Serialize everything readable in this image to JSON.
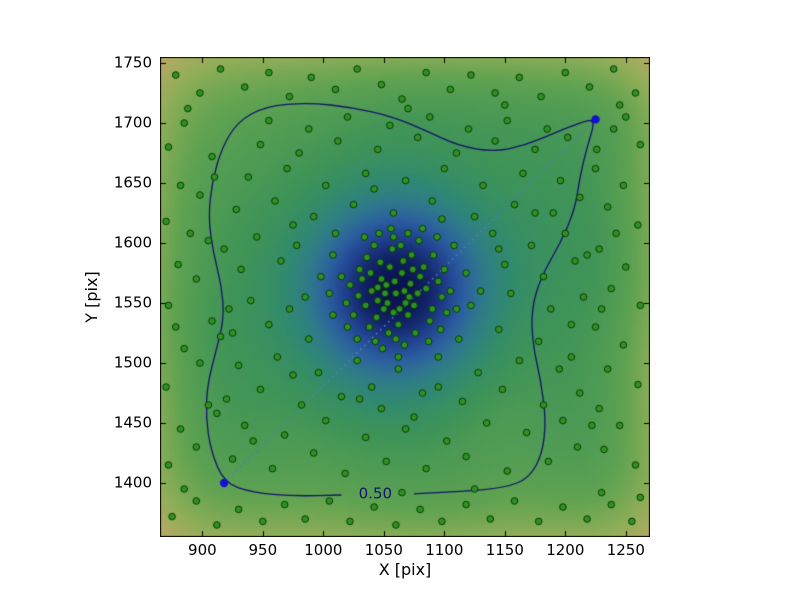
{
  "figure": {
    "background": "#ffffff"
  },
  "chart_data": {
    "type": "scatter",
    "title": "",
    "xlabel": "X [pix]",
    "ylabel": "Y [pix]",
    "xlim": [
      865,
      1270
    ],
    "ylim": [
      1355,
      1755
    ],
    "xticks": [
      900,
      950,
      1000,
      1050,
      1100,
      1150,
      1200,
      1250
    ],
    "yticks": [
      1400,
      1450,
      1500,
      1550,
      1600,
      1650,
      1700,
      1750
    ],
    "grid": false,
    "legend": null,
    "background_density": {
      "description": "kernel-density map of the scatter points, dark blue = highest density at cluster center (1060,1558), tan = lowest at edges",
      "bandwidth": 40,
      "gamma": 0.6,
      "colormap_stops": [
        [
          0.0,
          "#f0d9cc"
        ],
        [
          0.07,
          "#dcb195"
        ],
        [
          0.14,
          "#c9a178"
        ],
        [
          0.2,
          "#b3aa65"
        ],
        [
          0.27,
          "#8fae58"
        ],
        [
          0.35,
          "#60a351"
        ],
        [
          0.45,
          "#3f9457"
        ],
        [
          0.55,
          "#318a70"
        ],
        [
          0.65,
          "#2f7b8b"
        ],
        [
          0.75,
          "#2c5fa0"
        ],
        [
          0.85,
          "#20408e"
        ],
        [
          0.93,
          "#132468"
        ],
        [
          1.0,
          "#0a1252"
        ]
      ]
    },
    "scatter": {
      "color": "#2e9222",
      "edge_color": "#0c3a06",
      "radius": 3.3,
      "points": [
        [
          1060,
          1558
        ],
        [
          1052,
          1565
        ],
        [
          1068,
          1550
        ],
        [
          1045,
          1552
        ],
        [
          1072,
          1566
        ],
        [
          1058,
          1542
        ],
        [
          1065,
          1575
        ],
        [
          1048,
          1570
        ],
        [
          1078,
          1558
        ],
        [
          1040,
          1560
        ],
        [
          1055,
          1580
        ],
        [
          1070,
          1540
        ],
        [
          1062,
          1532
        ],
        [
          1050,
          1545
        ],
        [
          1080,
          1572
        ],
        [
          1035,
          1548
        ],
        [
          1066,
          1585
        ],
        [
          1044,
          1538
        ],
        [
          1075,
          1548
        ],
        [
          1057,
          1595
        ],
        [
          1085,
          1562
        ],
        [
          1032,
          1570
        ],
        [
          1060,
          1520
        ],
        [
          1047,
          1584
        ],
        [
          1090,
          1545
        ],
        [
          1038,
          1530
        ],
        [
          1073,
          1590
        ],
        [
          1054,
          1525
        ],
        [
          1083,
          1580
        ],
        [
          1029,
          1556
        ],
        [
          1095,
          1568
        ],
        [
          1042,
          1598
        ],
        [
          1067,
          1515
        ],
        [
          1036,
          1588
        ],
        [
          1088,
          1535
        ],
        [
          1058,
          1605
        ],
        [
          1025,
          1540
        ],
        [
          1079,
          1602
        ],
        [
          1049,
          1512
        ],
        [
          1098,
          1555
        ],
        [
          1030,
          1578
        ],
        [
          1064,
          1598
        ],
        [
          1091,
          1590
        ],
        [
          1022,
          1565
        ],
        [
          1076,
          1525
        ],
        [
          1043,
          1518
        ],
        [
          1100,
          1578
        ],
        [
          1056,
          1612
        ],
        [
          1034,
          1605
        ],
        [
          1087,
          1518
        ],
        [
          1102,
          1542
        ],
        [
          1019,
          1550
        ],
        [
          1070,
          1608
        ],
        [
          1046,
          1608
        ],
        [
          1094,
          1605
        ],
        [
          1028,
          1520
        ],
        [
          1105,
          1560
        ],
        [
          1062,
          1505
        ],
        [
          1039,
          1575
        ],
        [
          1082,
          1612
        ],
        [
          1015,
          1572
        ],
        [
          1097,
          1528
        ],
        [
          1051,
          1558
        ],
        [
          1074,
          1578
        ],
        [
          1059,
          1568
        ],
        [
          1067,
          1560
        ],
        [
          1053,
          1550
        ],
        [
          1063,
          1545
        ],
        [
          1071,
          1555
        ],
        [
          1045,
          1563
        ],
        [
          925,
          1420
        ],
        [
          958,
          1412
        ],
        [
          992,
          1425
        ],
        [
          1018,
          1408
        ],
        [
          1052,
          1418
        ],
        [
          1085,
          1412
        ],
        [
          1118,
          1422
        ],
        [
          1152,
          1410
        ],
        [
          1186,
          1418
        ],
        [
          1210,
          1430
        ],
        [
          935,
          1448
        ],
        [
          968,
          1440
        ],
        [
          1002,
          1452
        ],
        [
          1035,
          1438
        ],
        [
          1068,
          1445
        ],
        [
          1102,
          1435
        ],
        [
          1135,
          1450
        ],
        [
          1168,
          1442
        ],
        [
          1198,
          1452
        ],
        [
          920,
          1470
        ],
        [
          948,
          1478
        ],
        [
          982,
          1465
        ],
        [
          1015,
          1472
        ],
        [
          1048,
          1462
        ],
        [
          1082,
          1475
        ],
        [
          1115,
          1468
        ],
        [
          1148,
          1478
        ],
        [
          1182,
          1465
        ],
        [
          1212,
          1475
        ],
        [
          930,
          1498
        ],
        [
          962,
          1505
        ],
        [
          996,
          1492
        ],
        [
          1028,
          1502
        ],
        [
          1062,
          1495
        ],
        [
          1095,
          1505
        ],
        [
          1128,
          1492
        ],
        [
          1162,
          1502
        ],
        [
          1195,
          1495
        ],
        [
          925,
          1525
        ],
        [
          955,
          1532
        ],
        [
          988,
          1520
        ],
        [
          1020,
          1530
        ],
        [
          1112,
          1520
        ],
        [
          1145,
          1528
        ],
        [
          1178,
          1518
        ],
        [
          1205,
          1532
        ],
        [
          940,
          1552
        ],
        [
          972,
          1545
        ],
        [
          1005,
          1558
        ],
        [
          1122,
          1548
        ],
        [
          1155,
          1558
        ],
        [
          1188,
          1545
        ],
        [
          1215,
          1555
        ],
        [
          932,
          1578
        ],
        [
          965,
          1585
        ],
        [
          998,
          1572
        ],
        [
          1118,
          1575
        ],
        [
          1150,
          1582
        ],
        [
          1182,
          1572
        ],
        [
          1208,
          1585
        ],
        [
          945,
          1605
        ],
        [
          978,
          1598
        ],
        [
          1010,
          1608
        ],
        [
          1108,
          1598
        ],
        [
          1140,
          1608
        ],
        [
          1172,
          1598
        ],
        [
          1200,
          1608
        ],
        [
          928,
          1628
        ],
        [
          960,
          1635
        ],
        [
          992,
          1622
        ],
        [
          1025,
          1632
        ],
        [
          1058,
          1625
        ],
        [
          1090,
          1635
        ],
        [
          1125,
          1622
        ],
        [
          1158,
          1632
        ],
        [
          1190,
          1625
        ],
        [
          1212,
          1638
        ],
        [
          938,
          1655
        ],
        [
          970,
          1662
        ],
        [
          1002,
          1648
        ],
        [
          1035,
          1658
        ],
        [
          1068,
          1652
        ],
        [
          1100,
          1662
        ],
        [
          1132,
          1648
        ],
        [
          1165,
          1658
        ],
        [
          1196,
          1652
        ],
        [
          948,
          1682
        ],
        [
          980,
          1675
        ],
        [
          1012,
          1685
        ],
        [
          1045,
          1678
        ],
        [
          1078,
          1688
        ],
        [
          1110,
          1675
        ],
        [
          1142,
          1685
        ],
        [
          1175,
          1678
        ],
        [
          1202,
          1688
        ],
        [
          955,
          1702
        ],
        [
          988,
          1695
        ],
        [
          1020,
          1705
        ],
        [
          1055,
          1698
        ],
        [
          1088,
          1705
        ],
        [
          1120,
          1695
        ],
        [
          1152,
          1702
        ],
        [
          1185,
          1695
        ],
        [
          942,
          1435
        ],
        [
          1040,
          1480
        ],
        [
          1075,
          1455
        ],
        [
          975,
          1490
        ],
        [
          1008,
          1540
        ],
        [
          985,
          1555
        ],
        [
          1030,
          1470
        ],
        [
          1095,
          1480
        ],
        [
          1110,
          1545
        ],
        [
          1130,
          1560
        ],
        [
          1098,
          1620
        ],
        [
          1042,
          1645
        ],
        [
          1008,
          1590
        ],
        [
          975,
          1615
        ],
        [
          1145,
          1595
        ],
        [
          1175,
          1625
        ],
        [
          1205,
          1505
        ],
        [
          918,
          1595
        ],
        [
          922,
          1545
        ],
        [
          1218,
          1590
        ],
        [
          875,
          1372
        ],
        [
          895,
          1385
        ],
        [
          912,
          1365
        ],
        [
          930,
          1378
        ],
        [
          950,
          1368
        ],
        [
          968,
          1382
        ],
        [
          985,
          1370
        ],
        [
          1005,
          1385
        ],
        [
          1022,
          1368
        ],
        [
          1042,
          1380
        ],
        [
          1060,
          1365
        ],
        [
          1080,
          1378
        ],
        [
          1098,
          1368
        ],
        [
          1118,
          1382
        ],
        [
          1138,
          1370
        ],
        [
          1158,
          1385
        ],
        [
          1178,
          1368
        ],
        [
          1198,
          1380
        ],
        [
          1218,
          1370
        ],
        [
          1238,
          1382
        ],
        [
          1255,
          1368
        ],
        [
          1262,
          1388
        ],
        [
          885,
          1395
        ],
        [
          1065,
          1392
        ],
        [
          1125,
          1395
        ],
        [
          1230,
          1392
        ],
        [
          878,
          1740
        ],
        [
          898,
          1725
        ],
        [
          915,
          1745
        ],
        [
          935,
          1730
        ],
        [
          955,
          1742
        ],
        [
          972,
          1722
        ],
        [
          990,
          1738
        ],
        [
          1010,
          1728
        ],
        [
          1028,
          1745
        ],
        [
          1048,
          1732
        ],
        [
          1065,
          1720
        ],
        [
          1085,
          1742
        ],
        [
          1105,
          1728
        ],
        [
          1122,
          1740
        ],
        [
          1142,
          1725
        ],
        [
          1162,
          1738
        ],
        [
          1180,
          1722
        ],
        [
          1200,
          1742
        ],
        [
          1220,
          1730
        ],
        [
          1240,
          1745
        ],
        [
          1258,
          1725
        ],
        [
          888,
          1712
        ],
        [
          1070,
          1712
        ],
        [
          1150,
          1715
        ],
        [
          1245,
          1715
        ],
        [
          872,
          1415
        ],
        [
          882,
          1445
        ],
        [
          870,
          1480
        ],
        [
          885,
          1512
        ],
        [
          872,
          1548
        ],
        [
          880,
          1582
        ],
        [
          870,
          1618
        ],
        [
          882,
          1648
        ],
        [
          872,
          1680
        ],
        [
          885,
          1700
        ],
        [
          895,
          1430
        ],
        [
          905,
          1465
        ],
        [
          898,
          1500
        ],
        [
          908,
          1535
        ],
        [
          895,
          1570
        ],
        [
          905,
          1602
        ],
        [
          898,
          1640
        ],
        [
          908,
          1672
        ],
        [
          912,
          1458
        ],
        [
          915,
          1522
        ],
        [
          910,
          1655
        ],
        [
          878,
          1530
        ],
        [
          890,
          1608
        ],
        [
          1258,
          1415
        ],
        [
          1245,
          1448
        ],
        [
          1260,
          1482
        ],
        [
          1248,
          1515
        ],
        [
          1262,
          1548
        ],
        [
          1250,
          1580
        ],
        [
          1260,
          1615
        ],
        [
          1248,
          1648
        ],
        [
          1262,
          1682
        ],
        [
          1250,
          1705
        ],
        [
          1232,
          1428
        ],
        [
          1228,
          1462
        ],
        [
          1235,
          1495
        ],
        [
          1225,
          1530
        ],
        [
          1238,
          1562
        ],
        [
          1228,
          1595
        ],
        [
          1235,
          1630
        ],
        [
          1225,
          1662
        ],
        [
          1240,
          1695
        ],
        [
          1222,
          1448
        ],
        [
          1230,
          1545
        ],
        [
          1242,
          1608
        ],
        [
          1226,
          1678
        ]
      ]
    },
    "contour": {
      "label": "0.50",
      "level": 0.5,
      "color": "#14146a",
      "label_color": "#14146a",
      "label_pos": [
        1043,
        1391
      ],
      "line_width": 1.3,
      "points": [
        [
          1075,
          1391
        ],
        [
          1115,
          1393
        ],
        [
          1150,
          1396
        ],
        [
          1170,
          1404
        ],
        [
          1181,
          1424
        ],
        [
          1184,
          1452
        ],
        [
          1180,
          1484
        ],
        [
          1173,
          1516
        ],
        [
          1172,
          1545
        ],
        [
          1180,
          1572
        ],
        [
          1196,
          1600
        ],
        [
          1208,
          1628
        ],
        [
          1212,
          1655
        ],
        [
          1218,
          1680
        ],
        [
          1225,
          1703
        ],
        [
          1214,
          1701
        ],
        [
          1192,
          1692
        ],
        [
          1166,
          1681
        ],
        [
          1140,
          1676
        ],
        [
          1112,
          1681
        ],
        [
          1086,
          1693
        ],
        [
          1058,
          1705
        ],
        [
          1024,
          1713
        ],
        [
          988,
          1717
        ],
        [
          952,
          1714
        ],
        [
          929,
          1701
        ],
        [
          916,
          1679
        ],
        [
          908,
          1651
        ],
        [
          905,
          1621
        ],
        [
          909,
          1592
        ],
        [
          916,
          1564
        ],
        [
          918,
          1537
        ],
        [
          911,
          1509
        ],
        [
          904,
          1481
        ],
        [
          903,
          1454
        ],
        [
          907,
          1427
        ],
        [
          918,
          1400
        ],
        [
          942,
          1392
        ],
        [
          975,
          1389
        ],
        [
          1015,
          1390
        ]
      ]
    },
    "profile_line": {
      "from": [
        918,
        1400
      ],
      "to": [
        1225,
        1703
      ],
      "color": "#4d7fc0",
      "style": "dotted",
      "endpoint_color": "#1212d0",
      "endpoint_radius": 4.2
    }
  }
}
